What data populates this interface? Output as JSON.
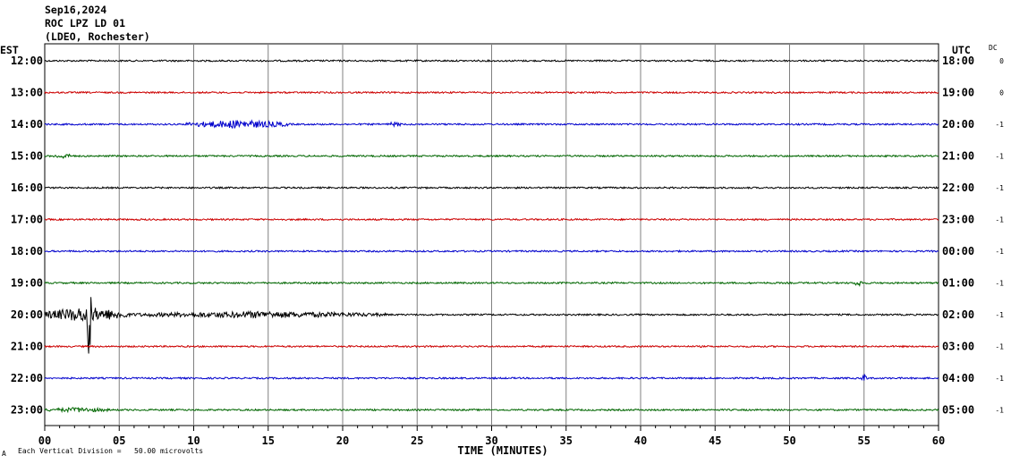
{
  "header": {
    "date": "Sep16,2024",
    "station": "ROC LPZ LD 01",
    "network": "(LDEO, Rochester)"
  },
  "left_axis_label": "EST",
  "right_axis_label": "UTC",
  "dc_label": "DC",
  "footer_note_symbol": "A",
  "footer_note": "Each Vertical Division =   50.00 microvolts",
  "chart_data": {
    "type": "line",
    "xlabel": "TIME (MINUTES)",
    "xlim": [
      0,
      60
    ],
    "x_ticks": [
      "00",
      "05",
      "10",
      "15",
      "20",
      "25",
      "30",
      "35",
      "40",
      "45",
      "50",
      "55",
      "60"
    ],
    "trace_colors": [
      "#000000",
      "#cc0000",
      "#0000cc",
      "#006600"
    ],
    "rows": [
      {
        "est": "12:00",
        "utc": "18:00",
        "dc": "0",
        "events": []
      },
      {
        "est": "13:00",
        "utc": "19:00",
        "dc": "0",
        "events": []
      },
      {
        "est": "14:00",
        "utc": "20:00",
        "dc": "-1",
        "events": [
          {
            "start": 9.5,
            "end": 16.5,
            "amp": 5
          },
          {
            "start": 23.0,
            "end": 24.0,
            "amp": 3
          }
        ]
      },
      {
        "est": "15:00",
        "utc": "21:00",
        "dc": "-1",
        "events": [
          {
            "start": 0.5,
            "end": 2.0,
            "amp": 3
          }
        ]
      },
      {
        "est": "16:00",
        "utc": "22:00",
        "dc": "-1",
        "events": []
      },
      {
        "est": "17:00",
        "utc": "23:00",
        "dc": "-1",
        "events": []
      },
      {
        "est": "18:00",
        "utc": "00:00",
        "dc": "-1",
        "events": []
      },
      {
        "est": "19:00",
        "utc": "01:00",
        "dc": "-1",
        "events": [
          {
            "start": 54.3,
            "end": 55.0,
            "amp": 4
          }
        ]
      },
      {
        "est": "20:00",
        "utc": "02:00",
        "dc": "-1",
        "events": [
          {
            "start": 0.0,
            "end": 5.5,
            "amp": 9
          },
          {
            "start": 5.5,
            "end": 23.0,
            "amp": 4
          },
          {
            "start": 2.8,
            "end": 3.1,
            "amp": 65
          }
        ]
      },
      {
        "est": "21:00",
        "utc": "03:00",
        "dc": "-1",
        "events": []
      },
      {
        "est": "22:00",
        "utc": "04:00",
        "dc": "-1",
        "events": [
          {
            "start": 54.7,
            "end": 55.3,
            "amp": 4
          }
        ]
      },
      {
        "est": "23:00",
        "utc": "05:00",
        "dc": "-1",
        "events": [
          {
            "start": 0.0,
            "end": 4.5,
            "amp": 3
          }
        ]
      }
    ]
  }
}
